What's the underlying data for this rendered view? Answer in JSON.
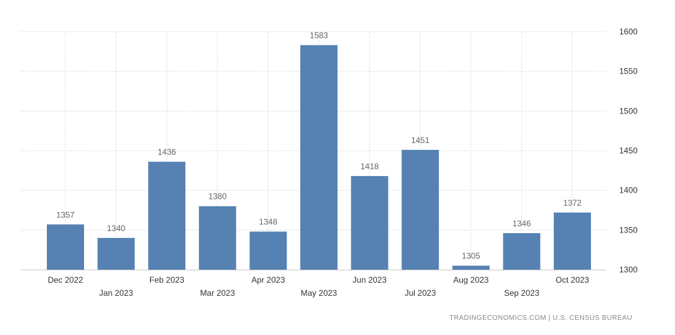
{
  "chart_data": {
    "type": "bar",
    "categories": [
      "Dec 2022",
      "Jan 2023",
      "Feb 2023",
      "Mar 2023",
      "Apr 2023",
      "May 2023",
      "Jun 2023",
      "Jul 2023",
      "Aug 2023",
      "Sep 2023",
      "Oct 2023"
    ],
    "values": [
      1357,
      1340,
      1436,
      1380,
      1348,
      1583,
      1418,
      1451,
      1305,
      1346,
      1372
    ],
    "ylim": [
      1300,
      1600
    ],
    "yticks": [
      1300,
      1350,
      1400,
      1450,
      1500,
      1550,
      1600
    ],
    "grid": true,
    "data_labels": true,
    "bar_color": "#5681b3",
    "y_axis_side": "right"
  },
  "footer": {
    "source_text": "TRADINGECONOMICS.COM  |  U.S. CENSUS BUREAU"
  }
}
